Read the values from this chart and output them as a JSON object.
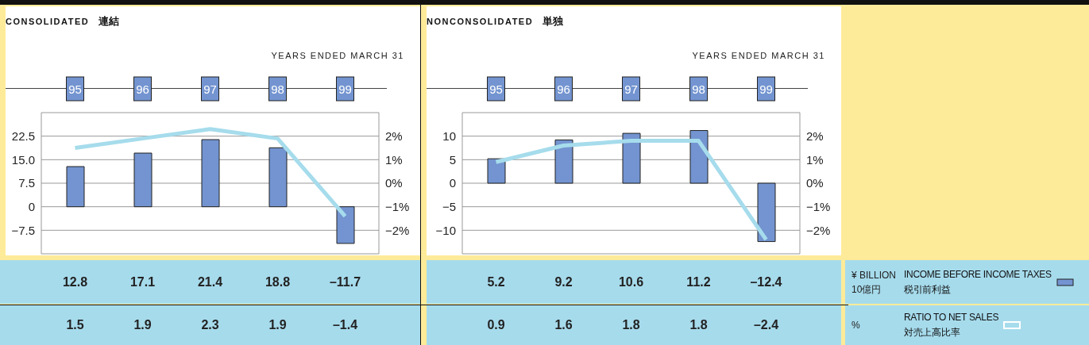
{
  "chart_data": [
    {
      "type": "bar",
      "title": "CONSOLIDATED 連結",
      "xlabel": "YEARS ENDED MARCH 31",
      "categories": [
        "95",
        "96",
        "97",
        "98",
        "99"
      ],
      "ylim": [
        -15,
        30
      ],
      "yticks": [
        {
          "value": -7.5,
          "label": "−7.5"
        },
        0,
        7.5,
        {
          "value": 15,
          "label": "15.0"
        },
        22.5
      ],
      "y2lim": [
        -3,
        3
      ],
      "y2ticks": [
        {
          "value": -2,
          "label": "−2%"
        },
        {
          "value": -1,
          "label": "−1%"
        },
        {
          "value": 0,
          "label": "0%"
        },
        {
          "value": 1,
          "label": "1%"
        },
        {
          "value": 2,
          "label": "2%"
        }
      ],
      "grid": "y",
      "marker": "none",
      "series": [
        {
          "color": "#7394d0",
          "values": [
            12.8,
            17.1,
            21.4,
            18.8,
            -11.7
          ],
          "value_labels": [
            "12.8",
            "17.1",
            "21.4",
            "18.8",
            "–11.7"
          ]
        },
        {
          "type": "line",
          "axis": "y2",
          "color": "#a6dcec",
          "values": [
            1.5,
            1.9,
            2.3,
            1.9,
            -1.4
          ],
          "value_labels": [
            "1.5",
            "1.9",
            "2.3",
            "1.9",
            "–1.4"
          ]
        }
      ]
    },
    {
      "type": "bar",
      "title": "NONCONSOLIDATED 単独",
      "xlabel": "YEARS ENDED MARCH 31",
      "categories": [
        "95",
        "96",
        "97",
        "98",
        "99"
      ],
      "annotations": [
        "¥ BILLION 10億円",
        "%"
      ],
      "legend": "right",
      "ylim": [
        -15,
        15
      ],
      "yticks": [
        {
          "value": -10,
          "label": "−10"
        },
        {
          "value": -5,
          "label": "−5"
        },
        0,
        5,
        10
      ],
      "y2lim": [
        -3,
        3
      ],
      "y2ticks": [
        {
          "value": -2,
          "label": "−2%"
        },
        {
          "value": -1,
          "label": "−1%"
        },
        {
          "value": 0,
          "label": "0%"
        },
        {
          "value": 1,
          "label": "1%"
        },
        {
          "value": 2,
          "label": "2%"
        }
      ],
      "grid": "y",
      "marker": "none",
      "series": [
        {
          "name": "INCOME BEFORE INCOME TAXES\n税引前利益",
          "color": "#7394d0",
          "values": [
            5.2,
            9.2,
            10.6,
            11.2,
            -12.4
          ],
          "value_labels": [
            "5.2",
            "9.2",
            "10.6",
            "11.2",
            "–12.4"
          ]
        },
        {
          "type": "line",
          "name": "RATIO TO NET SALES\n対売上高比率",
          "axis": "y2",
          "color": "#a6dcec",
          "values": [
            0.9,
            1.6,
            1.8,
            1.8,
            -2.4
          ],
          "value_labels": [
            "0.9",
            "1.6",
            "1.8",
            "1.8",
            "–2.4"
          ]
        }
      ]
    }
  ]
}
